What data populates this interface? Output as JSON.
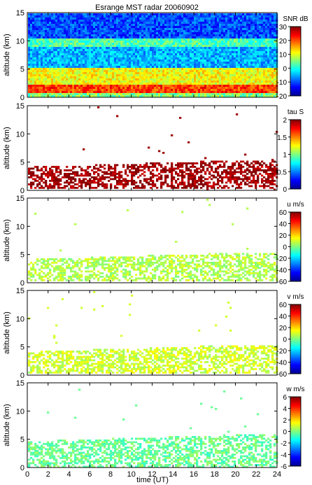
{
  "chart_data": {
    "type": "heatmap",
    "title": "Esrange MST radar 20060902",
    "xlabel": "time (UT)",
    "xlim": [
      0,
      24
    ],
    "x_ticks": [
      "0",
      "2",
      "4",
      "6",
      "8",
      "10",
      "12",
      "14",
      "16",
      "18",
      "20",
      "22",
      "24"
    ],
    "colormap": [
      "#00008f",
      "#0000ff",
      "#0080ff",
      "#00ffff",
      "#80ff80",
      "#ffff00",
      "#ff8000",
      "#ff0000",
      "#800000"
    ],
    "panels": [
      {
        "id": "snr",
        "ylabel": "altitude (km)",
        "ylim": [
          0,
          15
        ],
        "y_ticks": [
          "0",
          "5",
          "10",
          "15"
        ],
        "colorbar_label": "SNR dB",
        "colorbar_range": [
          -20,
          30
        ],
        "colorbar_ticks": [
          "30",
          "20",
          "10",
          "0",
          "-10",
          "-20"
        ],
        "layers": [
          {
            "alt_min": 0,
            "alt_max": 0.8,
            "value_norm": 0.5
          },
          {
            "alt_min": 0.8,
            "alt_max": 2.5,
            "value_norm": 0.82
          },
          {
            "alt_min": 2.5,
            "alt_max": 5.5,
            "value_norm": 0.62
          },
          {
            "alt_min": 5.5,
            "alt_max": 9,
            "value_norm": 0.3
          },
          {
            "alt_min": 9,
            "alt_max": 10.5,
            "value_norm": 0.45
          },
          {
            "alt_min": 10.5,
            "alt_max": 15,
            "value_norm": 0.2
          }
        ]
      },
      {
        "id": "tau",
        "ylabel": "altitude (km)",
        "ylim": [
          0,
          15
        ],
        "y_ticks": [
          "0",
          "5",
          "10",
          "15"
        ],
        "colorbar_label": "tau S",
        "colorbar_range": [
          0,
          2
        ],
        "colorbar_ticks": [
          "2",
          "1.5",
          "1",
          "0.5",
          "0"
        ],
        "layers": [
          {
            "alt_min": 0.5,
            "alt_max": 5.5,
            "value_norm": 0.97
          }
        ]
      },
      {
        "id": "u",
        "ylabel": "altitude (km)",
        "ylim": [
          0,
          15
        ],
        "y_ticks": [
          "0",
          "5",
          "10",
          "15"
        ],
        "colorbar_label": "u m/s",
        "colorbar_range": [
          -60,
          60
        ],
        "colorbar_ticks": [
          "60",
          "40",
          "20",
          "0",
          "-20",
          "-40",
          "-60"
        ],
        "layers": [
          {
            "alt_min": 0.5,
            "alt_max": 5.5,
            "value_norm": 0.55
          }
        ]
      },
      {
        "id": "v",
        "ylabel": "altitude (km)",
        "ylim": [
          0,
          15
        ],
        "y_ticks": [
          "0",
          "5",
          "10",
          "15"
        ],
        "colorbar_label": "v m/s",
        "colorbar_range": [
          -60,
          60
        ],
        "colorbar_ticks": [
          "60",
          "40",
          "20",
          "0",
          "-20",
          "-40",
          "-60"
        ],
        "layers": [
          {
            "alt_min": 0.5,
            "alt_max": 5.5,
            "value_norm": 0.58
          }
        ]
      },
      {
        "id": "w",
        "ylabel": "altitude (km)",
        "ylim": [
          0,
          15
        ],
        "y_ticks": [
          "0",
          "5",
          "10",
          "15"
        ],
        "colorbar_label": "w m/s",
        "colorbar_range": [
          -6,
          6
        ],
        "colorbar_ticks": [
          "6",
          "4",
          "2",
          "0",
          "-2",
          "-4",
          "-6"
        ],
        "layers": [
          {
            "alt_min": 0.3,
            "alt_max": 6,
            "value_norm": 0.48
          }
        ]
      }
    ]
  }
}
